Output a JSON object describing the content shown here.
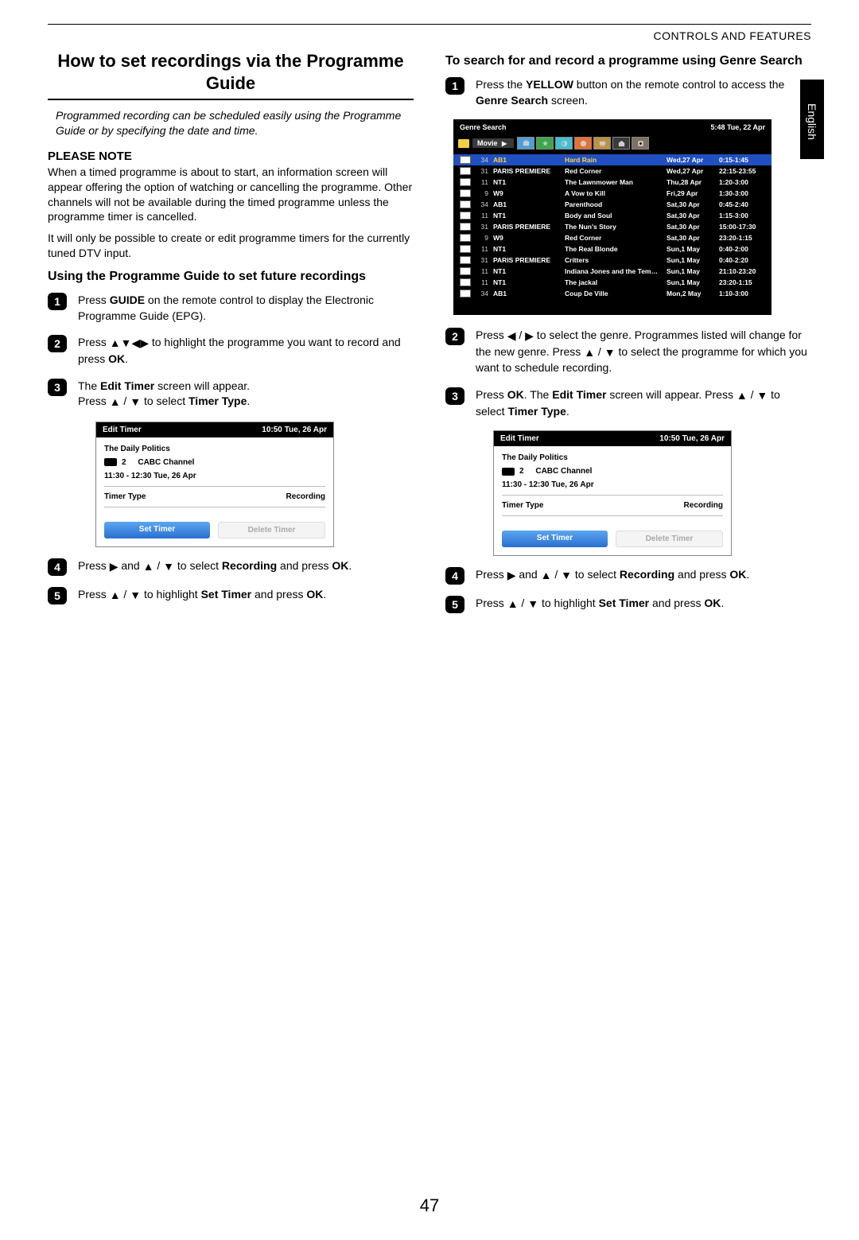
{
  "header": {
    "section": "CONTROLS AND FEATURES",
    "lang": "English",
    "page_number": "47"
  },
  "leftCol": {
    "title": "How to set recordings via the Programme Guide",
    "intro": "Programmed recording can be scheduled easily using the Programme Guide or by specifying the date and time.",
    "noteHead": "PLEASE NOTE",
    "note1": "When a timed programme is about to start, an information screen will appear offering the option of watching or cancelling the programme. Other channels will not be available during the timed programme unless the programme timer is cancelled.",
    "note2": "It will only be possible to create or edit programme timers for the currently tuned DTV input.",
    "sub1": "Using the Programme Guide to set future recordings",
    "step1_pre": "Press ",
    "step1_b": "GUIDE",
    "step1_post": " on the remote control to display the Electronic Programme Guide (EPG).",
    "step2_pre": "Press ",
    "step2_post": " to highlight the programme you want to record and press ",
    "step2_ok": "OK",
    "step2_end": ".",
    "step3_p1a": "The ",
    "step3_p1b": "Edit Timer",
    "step3_p1c": " screen will appear.",
    "step3_p2a": "Press ",
    "step3_p2b": " to select ",
    "step3_p2c": "Timer Type",
    "step3_p2d": ".",
    "step4_pre": "Press ",
    "step4_mid": " and ",
    "step4_sel": " to select ",
    "step4_rec": "Recording",
    "step4_press": " and press ",
    "step4_ok": "OK",
    "step4_end": ".",
    "step5_pre": "Press ",
    "step5_mid": " to highlight ",
    "step5_st": "Set Timer",
    "step5_press": " and press ",
    "step5_ok": "OK",
    "step5_end": "."
  },
  "rightCol": {
    "sub1": "To search for and record a programme using Genre Search",
    "step1_pre": "Press the ",
    "step1_b": "YELLOW",
    "step1_post": " button on the remote control to access the ",
    "step1_gs": "Genre Search",
    "step1_end": " screen.",
    "step2_pre": "Press ",
    "step2_mid": " to select the genre. Programmes listed will change for the new genre. Press ",
    "step2_post": " to select the programme for which you want to schedule recording.",
    "step3_pre": "Press ",
    "step3_ok": "OK",
    "step3_mid": ". The ",
    "step3_et": "Edit Timer",
    "step3_post": " screen will appear. Press ",
    "step3_sel": " to select ",
    "step3_tt": "Timer Type",
    "step3_end": ".",
    "step4_pre": "Press ",
    "step4_mid": " and ",
    "step4_sel": " to select ",
    "step4_rec": "Recording",
    "step4_press": " and press ",
    "step4_ok": "OK",
    "step4_end": ".",
    "step5_pre": "Press ",
    "step5_mid": " to highlight ",
    "step5_st": "Set Timer",
    "step5_press": " and press ",
    "step5_ok": "OK",
    "step5_end": "."
  },
  "editTimer": {
    "title": "Edit Timer",
    "time": "10:50 Tue, 26 Apr",
    "prog": "The Daily Politics",
    "chNum": "2",
    "chName": "CABC  Channel",
    "slot": "11:30 - 12:30 Tue, 26 Apr",
    "row2a": "Timer Type",
    "row2b": "Recording",
    "btn1": "Set Timer",
    "btn2": "Delete Timer"
  },
  "genreSearch": {
    "title": "Genre Search",
    "clock": "5:48 Tue, 22 Apr",
    "tabLabel": "Movie",
    "tabIconColors": [
      "#4aa0d8",
      "#3aa84a",
      "#40c0d0",
      "#e87030",
      "#c09040",
      "#3a3a3a",
      "#807060"
    ],
    "rows": [
      {
        "num": "34",
        "ch": "AB1",
        "title": "Hard Rain",
        "date": "Wed,27 Apr",
        "time": "0:15-1:45",
        "sel": true
      },
      {
        "num": "31",
        "ch": "PARIS PREMIERE",
        "title": "Red Corner",
        "date": "Wed,27 Apr",
        "time": "22:15-23:55"
      },
      {
        "num": "11",
        "ch": "NT1",
        "title": "The Lawnmower Man",
        "date": "Thu,28 Apr",
        "time": "1:20-3:00"
      },
      {
        "num": "9",
        "ch": "W9",
        "title": "A Vow to Kill",
        "date": "Fri,29 Apr",
        "time": "1:30-3:00"
      },
      {
        "num": "34",
        "ch": "AB1",
        "title": "Parenthood",
        "date": "Sat,30 Apr",
        "time": "0:45-2:40"
      },
      {
        "num": "11",
        "ch": "NT1",
        "title": "Body and Soul",
        "date": "Sat,30 Apr",
        "time": "1:15-3:00"
      },
      {
        "num": "31",
        "ch": "PARIS PREMIERE",
        "title": "The Nun's Story",
        "date": "Sat,30 Apr",
        "time": "15:00-17:30"
      },
      {
        "num": "9",
        "ch": "W9",
        "title": "Red Corner",
        "date": "Sat,30 Apr",
        "time": "23:20-1:15"
      },
      {
        "num": "11",
        "ch": "NT1",
        "title": "The Real Blonde",
        "date": "Sun,1 May",
        "time": "0:40-2:00"
      },
      {
        "num": "31",
        "ch": "PARIS PREMIERE",
        "title": "Critters",
        "date": "Sun,1 May",
        "time": "0:40-2:20"
      },
      {
        "num": "11",
        "ch": "NT1",
        "title": "Indiana Jones and the Temple of Doom",
        "date": "Sun,1 May",
        "time": "21:10-23:20"
      },
      {
        "num": "11",
        "ch": "NT1",
        "title": "The jackal",
        "date": "Sun,1 May",
        "time": "23:20-1:15"
      },
      {
        "num": "34",
        "ch": "AB1",
        "title": "Coup De Ville",
        "date": "Mon,2 May",
        "time": "1:10-3:00"
      }
    ]
  },
  "colors": {
    "primary": "#2a6fd0",
    "selRow": "#2050c0",
    "selText": "#ffd040"
  }
}
